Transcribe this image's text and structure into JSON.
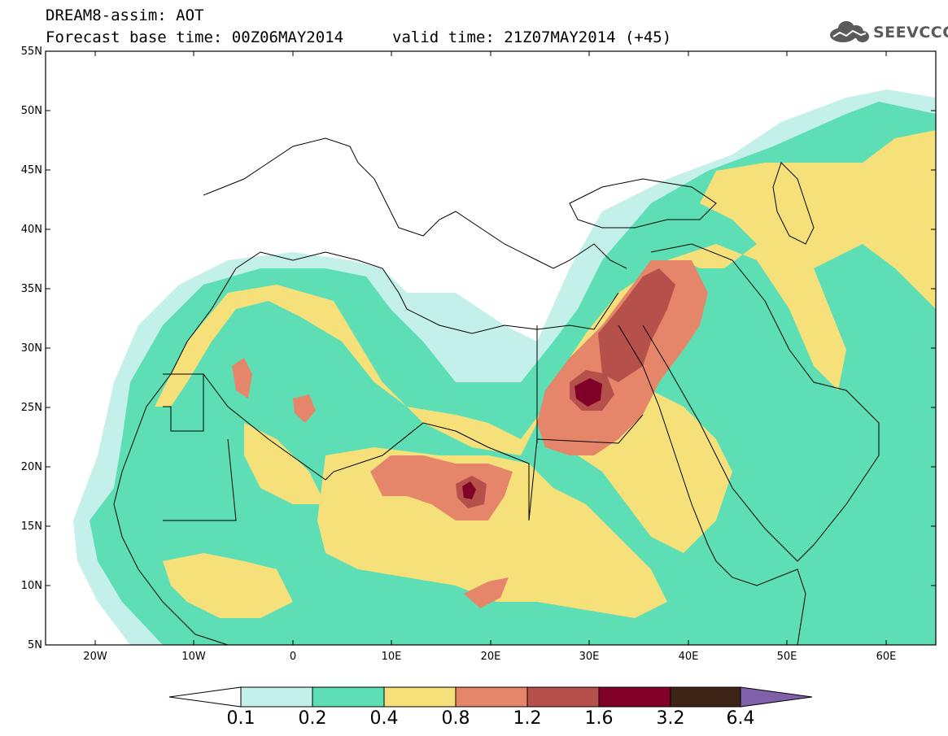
{
  "title": {
    "line1": "DREAM8-assim: AOT",
    "line2": "Forecast base time: 00Z06MAY2014",
    "valid": "valid time: 21Z07MAY2014 (+45)"
  },
  "logo": {
    "text": "SEEVCCC",
    "icon": "cloud-icon"
  },
  "axes": {
    "lat_labels": [
      "55N",
      "50N",
      "45N",
      "40N",
      "35N",
      "30N",
      "25N",
      "20N",
      "15N",
      "10N",
      "5N"
    ],
    "lon_labels": [
      "20W",
      "10W",
      "0",
      "10E",
      "20E",
      "30E",
      "40E",
      "50E",
      "60E"
    ],
    "lat_range": [
      5,
      55
    ],
    "lon_range": [
      -25,
      65
    ]
  },
  "colorbar": {
    "labels": [
      "0.1",
      "0.2",
      "0.4",
      "0.8",
      "1.2",
      "1.6",
      "3.2",
      "6.4"
    ],
    "colors": [
      "#ffffff",
      "#c4f0ea",
      "#5ddeb4",
      "#f6e07a",
      "#e5866a",
      "#b5504a",
      "#800028",
      "#3e2416",
      "#8060a8"
    ]
  }
}
